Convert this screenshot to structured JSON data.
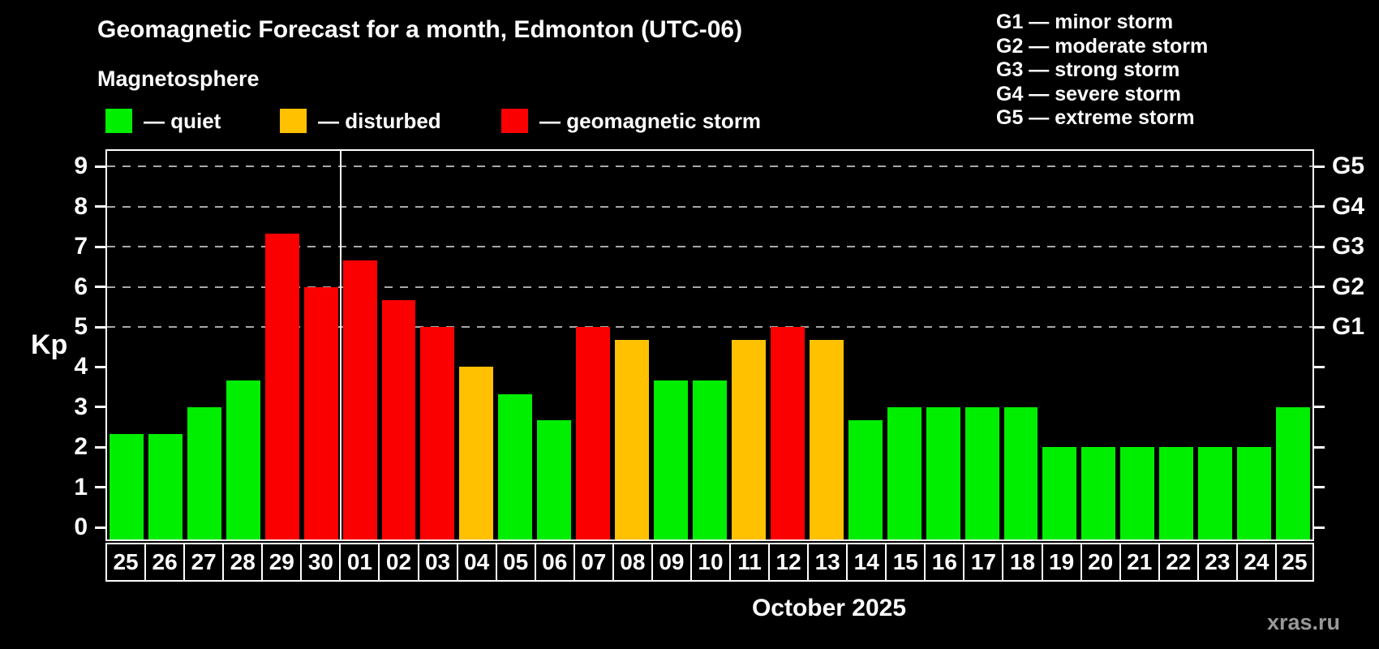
{
  "title": "Geomagnetic Forecast for a month, Edmonton (UTC-06)",
  "subtitle": "Magnetosphere",
  "legend": {
    "items": [
      {
        "key": "quiet",
        "label": "— quiet",
        "color": "#00ee00"
      },
      {
        "key": "disturbed",
        "label": "— disturbed",
        "color": "#ffc100"
      },
      {
        "key": "storm",
        "label": "— geomagnetic storm",
        "color": "#fb0000"
      }
    ]
  },
  "g_scale_legend": [
    "G1 — minor storm",
    "G2 — moderate storm",
    "G3 — strong storm",
    "G4 — severe storm",
    "G5 — extreme storm"
  ],
  "axis": {
    "y_label": "Kp",
    "y_ticks": [
      0,
      1,
      2,
      3,
      4,
      5,
      6,
      7,
      8,
      9
    ],
    "right_labels": [
      {
        "kp": 5,
        "label": "G1"
      },
      {
        "kp": 6,
        "label": "G2"
      },
      {
        "kp": 7,
        "label": "G3"
      },
      {
        "kp": 8,
        "label": "G4"
      },
      {
        "kp": 9,
        "label": "G5"
      }
    ]
  },
  "footer": {
    "x_axis_title": "October 2025",
    "watermark": "xras.ru"
  },
  "chart_data": {
    "type": "bar",
    "title": "Geomagnetic Forecast for a month, Edmonton (UTC-06)",
    "xlabel": "October 2025",
    "ylabel": "Kp",
    "ylim": [
      0,
      9
    ],
    "grid": "horizontal dashed lines at Kp 5-9 (G1-G5 levels)",
    "gridlines_at": [
      5,
      6,
      7,
      8,
      9
    ],
    "month_divider_after_index": 5,
    "categories": [
      "25",
      "26",
      "27",
      "28",
      "29",
      "30",
      "01",
      "02",
      "03",
      "04",
      "05",
      "06",
      "07",
      "08",
      "09",
      "10",
      "11",
      "12",
      "13",
      "14",
      "15",
      "16",
      "17",
      "18",
      "19",
      "20",
      "21",
      "22",
      "23",
      "24",
      "25"
    ],
    "values": [
      2.33,
      2.33,
      3.0,
      3.67,
      7.33,
      6.0,
      6.67,
      5.67,
      5.0,
      4.0,
      3.33,
      2.67,
      5.0,
      4.67,
      3.67,
      3.67,
      4.67,
      5.0,
      4.67,
      2.67,
      3.0,
      3.0,
      3.0,
      3.0,
      2.0,
      2.0,
      2.0,
      2.0,
      2.0,
      2.0,
      3.0
    ],
    "statuses": [
      "quiet",
      "quiet",
      "quiet",
      "quiet",
      "storm",
      "storm",
      "storm",
      "storm",
      "storm",
      "disturbed",
      "quiet",
      "quiet",
      "storm",
      "disturbed",
      "quiet",
      "quiet",
      "disturbed",
      "storm",
      "disturbed",
      "quiet",
      "quiet",
      "quiet",
      "quiet",
      "quiet",
      "quiet",
      "quiet",
      "quiet",
      "quiet",
      "quiet",
      "quiet",
      "quiet"
    ],
    "status_colors": {
      "quiet": "#00ee00",
      "disturbed": "#ffc100",
      "storm": "#fb0000"
    }
  }
}
